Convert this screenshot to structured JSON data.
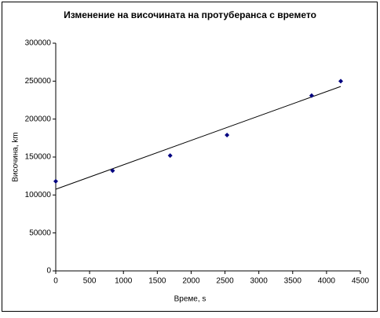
{
  "chart_data": {
    "type": "scatter",
    "title": "Изменение на височината на протуберанса с времето",
    "xlabel": "Време, s",
    "ylabel": "Височина, km",
    "x": [
      0,
      840,
      1690,
      2530,
      3780,
      4210
    ],
    "values": [
      118000,
      132000,
      152000,
      179000,
      231000,
      250000
    ],
    "color": "#000080",
    "trendline": {
      "x": [
        0,
        4210
      ],
      "values": [
        107600,
        243000
      ],
      "color": "#000000"
    },
    "xlim": [
      0,
      4500
    ],
    "xticks": [
      0,
      500,
      1000,
      1500,
      2000,
      2500,
      3000,
      3500,
      4000,
      4500
    ],
    "ylim": [
      0,
      300000
    ],
    "yticks": [
      0,
      50000,
      100000,
      150000,
      200000,
      250000,
      300000
    ],
    "grid": false
  }
}
